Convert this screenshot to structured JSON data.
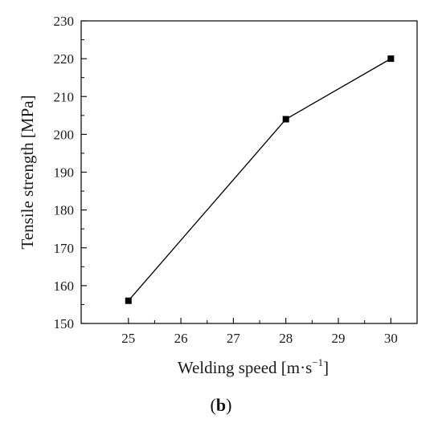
{
  "chart_data": {
    "type": "line",
    "x": [
      25,
      28,
      30
    ],
    "series": [
      {
        "values": [
          156,
          204,
          220
        ],
        "marker": "square",
        "color": "#000000"
      }
    ],
    "xlabel": "Welding speed",
    "xlabel_unit_base": "m·s",
    "xlabel_unit_exp": "−1",
    "ylabel": "Tensile strength  [MPa]",
    "xlim": [
      24.1,
      30.5
    ],
    "ylim": [
      150,
      230
    ],
    "xticks": [
      25,
      26,
      27,
      28,
      29,
      30
    ],
    "yticks": [
      150,
      160,
      170,
      180,
      190,
      200,
      210,
      220,
      230
    ],
    "grid": false,
    "legend": "none"
  },
  "panel": {
    "open": "(",
    "letter": "b",
    "close": ")"
  }
}
